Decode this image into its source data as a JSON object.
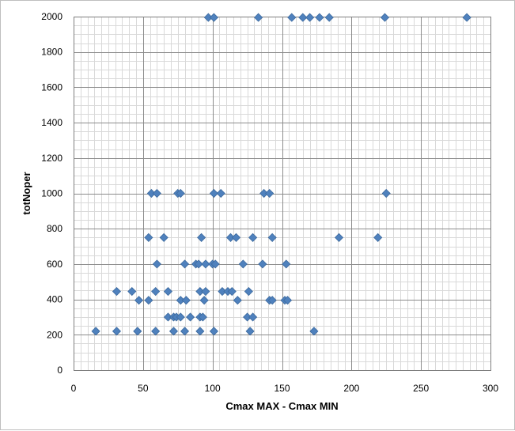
{
  "chart_data": {
    "type": "scatter",
    "xlabel": "Cmax MAX - Cmax MIN",
    "ylabel": "totNoper",
    "xlim": [
      0,
      300
    ],
    "ylim": [
      0,
      2000
    ],
    "x_ticks": [
      0,
      50,
      100,
      150,
      200,
      250,
      300
    ],
    "y_ticks": [
      0,
      200,
      400,
      600,
      800,
      1000,
      1200,
      1400,
      1600,
      1800,
      2000
    ],
    "x_minor_step": 5,
    "y_minor_step": 50,
    "grid": true,
    "legend": "none",
    "marker_color": "#4f81bd",
    "points": [
      [
        97,
        1995
      ],
      [
        101,
        1995
      ],
      [
        133,
        1995
      ],
      [
        157,
        1995
      ],
      [
        165,
        1995
      ],
      [
        170,
        1995
      ],
      [
        177,
        1995
      ],
      [
        184,
        1995
      ],
      [
        224,
        1995
      ],
      [
        283,
        1995
      ],
      [
        56,
        1000
      ],
      [
        60,
        1000
      ],
      [
        75,
        1000
      ],
      [
        77,
        1000
      ],
      [
        101,
        1000
      ],
      [
        106,
        1000
      ],
      [
        137,
        1000
      ],
      [
        141,
        1000
      ],
      [
        225,
        1000
      ],
      [
        54,
        750
      ],
      [
        65,
        750
      ],
      [
        92,
        750
      ],
      [
        113,
        750
      ],
      [
        117,
        750
      ],
      [
        129,
        750
      ],
      [
        143,
        750
      ],
      [
        191,
        750
      ],
      [
        219,
        750
      ],
      [
        60,
        600
      ],
      [
        80,
        600
      ],
      [
        88,
        600
      ],
      [
        90,
        600
      ],
      [
        95,
        600
      ],
      [
        100,
        600
      ],
      [
        102,
        600
      ],
      [
        122,
        600
      ],
      [
        136,
        600
      ],
      [
        153,
        600
      ],
      [
        31,
        445
      ],
      [
        42,
        445
      ],
      [
        59,
        445
      ],
      [
        68,
        445
      ],
      [
        91,
        445
      ],
      [
        95,
        445
      ],
      [
        107,
        445
      ],
      [
        111,
        445
      ],
      [
        114,
        445
      ],
      [
        126,
        445
      ],
      [
        47,
        395
      ],
      [
        54,
        395
      ],
      [
        77,
        395
      ],
      [
        81,
        395
      ],
      [
        94,
        395
      ],
      [
        118,
        395
      ],
      [
        141,
        395
      ],
      [
        143,
        395
      ],
      [
        152,
        395
      ],
      [
        154,
        395
      ],
      [
        68,
        300
      ],
      [
        72,
        300
      ],
      [
        74,
        300
      ],
      [
        77,
        300
      ],
      [
        84,
        300
      ],
      [
        91,
        300
      ],
      [
        93,
        300
      ],
      [
        125,
        300
      ],
      [
        129,
        300
      ],
      [
        16,
        220
      ],
      [
        31,
        220
      ],
      [
        46,
        220
      ],
      [
        59,
        220
      ],
      [
        72,
        220
      ],
      [
        80,
        220
      ],
      [
        91,
        220
      ],
      [
        101,
        220
      ],
      [
        127,
        220
      ],
      [
        173,
        220
      ]
    ]
  }
}
